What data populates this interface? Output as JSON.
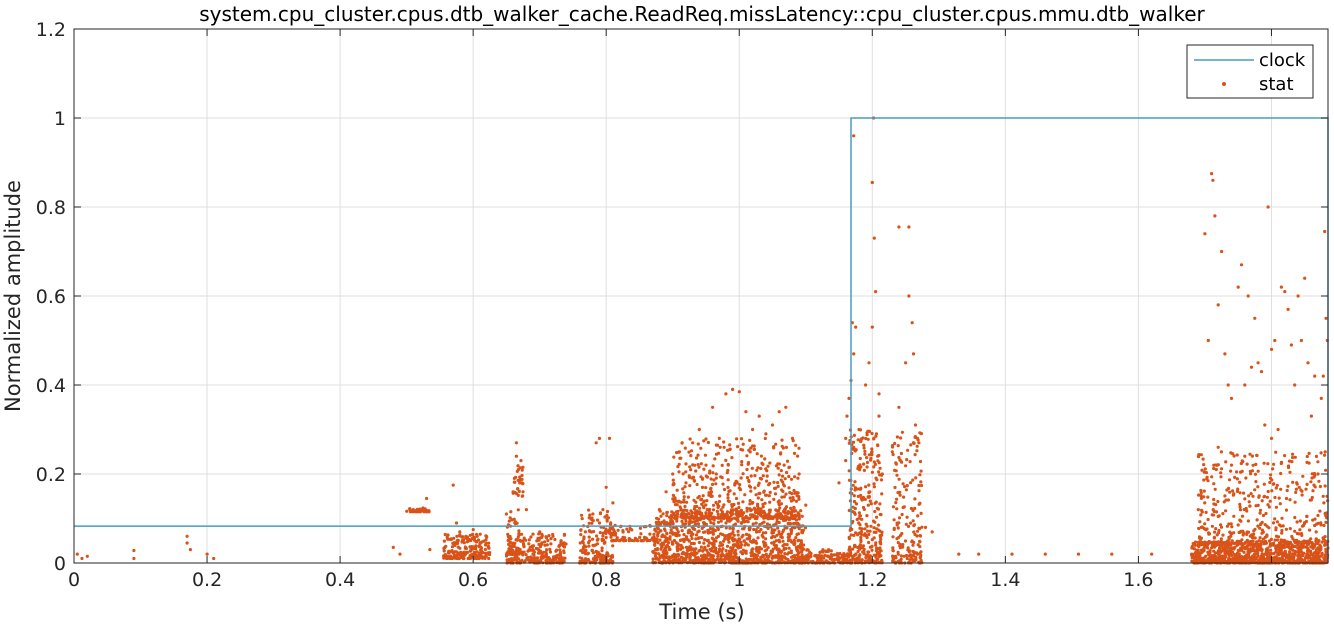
{
  "chart_data": {
    "type": "scatter",
    "title": "system.cpu_cluster.cpus.dtb_walker_cache.ReadReq.missLatency::cpu_cluster.cpus.mmu.dtb_walker",
    "xlabel": "Time (s)",
    "ylabel": "Normalized amplitude",
    "xlim": [
      0,
      1.885
    ],
    "ylim": [
      0,
      1.2
    ],
    "xticks": [
      0,
      0.2,
      0.4,
      0.6,
      0.8,
      1,
      1.2,
      1.4,
      1.6,
      1.8
    ],
    "xtick_labels": [
      "0",
      "0.2",
      "0.4",
      "0.6",
      "0.8",
      "1",
      "1.2",
      "1.4",
      "1.6",
      "1.8"
    ],
    "yticks": [
      0,
      0.2,
      0.4,
      0.6,
      0.8,
      1,
      1.2
    ],
    "ytick_labels": [
      "0",
      "0.2",
      "0.4",
      "0.6",
      "0.8",
      "1",
      "1.2"
    ],
    "grid": true,
    "legend_position": "top-right",
    "colors": {
      "clock": "#4a9cc1",
      "stat": "#d95319"
    },
    "series": [
      {
        "name": "clock",
        "type": "step-line",
        "x": [
          0,
          1.168,
          1.168,
          1.885,
          1.885
        ],
        "y": [
          0.083,
          0.083,
          1.0,
          1.0,
          0
        ]
      },
      {
        "name": "stat",
        "type": "scatter",
        "points": [
          [
            0.005,
            0.02
          ],
          [
            0.012,
            0.01
          ],
          [
            0.02,
            0.015
          ],
          [
            0.09,
            0.028
          ],
          [
            0.09,
            0.01
          ],
          [
            0.17,
            0.06
          ],
          [
            0.17,
            0.045
          ],
          [
            0.175,
            0.03
          ],
          [
            0.2,
            0.02
          ],
          [
            0.21,
            0.01
          ],
          [
            0.48,
            0.035
          ],
          [
            0.49,
            0.02
          ],
          [
            0.505,
            0.12
          ],
          [
            0.51,
            0.12
          ],
          [
            0.515,
            0.118
          ],
          [
            0.52,
            0.12
          ],
          [
            0.525,
            0.12
          ],
          [
            0.53,
            0.145
          ],
          [
            0.53,
            0.118
          ],
          [
            0.535,
            0.03
          ],
          [
            0.57,
            0.175
          ],
          [
            0.575,
            0.09
          ],
          [
            0.58,
            0.07
          ],
          [
            0.6,
            0.075
          ],
          [
            0.62,
            0.06
          ],
          [
            0.65,
            0.11
          ],
          [
            0.655,
            0.02
          ],
          [
            0.66,
            0.16
          ],
          [
            0.662,
            0.19
          ],
          [
            0.665,
            0.24
          ],
          [
            0.665,
            0.27
          ],
          [
            0.668,
            0.21
          ],
          [
            0.67,
            0.18
          ],
          [
            0.672,
            0.23
          ],
          [
            0.675,
            0.16
          ],
          [
            0.68,
            0.12
          ],
          [
            0.69,
            0.065
          ],
          [
            0.7,
            0.07
          ],
          [
            0.72,
            0.06
          ],
          [
            0.73,
            0.04
          ],
          [
            0.78,
            0.11
          ],
          [
            0.785,
            0.27
          ],
          [
            0.79,
            0.28
          ],
          [
            0.795,
            0.12
          ],
          [
            0.8,
            0.17
          ],
          [
            0.805,
            0.28
          ],
          [
            0.81,
            0.135
          ],
          [
            0.79,
            0.09
          ],
          [
            0.775,
            0.05
          ],
          [
            0.81,
            0.05
          ],
          [
            0.88,
            0.12
          ],
          [
            0.89,
            0.16
          ],
          [
            0.9,
            0.2
          ],
          [
            0.91,
            0.25
          ],
          [
            0.92,
            0.18
          ],
          [
            0.93,
            0.27
          ],
          [
            0.94,
            0.3
          ],
          [
            0.95,
            0.22
          ],
          [
            0.96,
            0.35
          ],
          [
            0.97,
            0.28
          ],
          [
            0.98,
            0.38
          ],
          [
            0.99,
            0.39
          ],
          [
            1.0,
            0.385
          ],
          [
            1.01,
            0.34
          ],
          [
            1.02,
            0.3
          ],
          [
            1.03,
            0.33
          ],
          [
            1.04,
            0.29
          ],
          [
            1.05,
            0.31
          ],
          [
            1.06,
            0.34
          ],
          [
            1.07,
            0.35
          ],
          [
            1.08,
            0.28
          ],
          [
            1.09,
            0.2
          ],
          [
            1.1,
            0.13
          ],
          [
            1.15,
            0.18
          ],
          [
            1.16,
            0.23
          ],
          [
            1.16,
            0.28
          ],
          [
            1.162,
            0.33
          ],
          [
            1.165,
            0.37
          ],
          [
            1.168,
            0.41
          ],
          [
            1.17,
            0.54
          ],
          [
            1.172,
            0.47
          ],
          [
            1.175,
            0.53
          ],
          [
            1.172,
            0.96
          ],
          [
            1.18,
            0.3
          ],
          [
            1.19,
            0.4
          ],
          [
            1.195,
            0.45
          ],
          [
            1.2,
            0.53
          ],
          [
            1.2,
            0.855
          ],
          [
            1.202,
            1.0
          ],
          [
            1.203,
            0.73
          ],
          [
            1.205,
            0.61
          ],
          [
            1.21,
            0.33
          ],
          [
            1.21,
            0.38
          ],
          [
            1.215,
            0.2
          ],
          [
            1.24,
            0.755
          ],
          [
            1.255,
            0.755
          ],
          [
            1.255,
            0.6
          ],
          [
            1.26,
            0.54
          ],
          [
            1.262,
            0.47
          ],
          [
            1.265,
            0.31
          ],
          [
            1.268,
            0.28
          ],
          [
            1.27,
            0.27
          ],
          [
            1.25,
            0.45
          ],
          [
            1.24,
            0.35
          ],
          [
            1.23,
            0.25
          ],
          [
            1.28,
            0.08
          ],
          [
            1.29,
            0.07
          ],
          [
            1.33,
            0.02
          ],
          [
            1.36,
            0.02
          ],
          [
            1.41,
            0.02
          ],
          [
            1.46,
            0.02
          ],
          [
            1.51,
            0.02
          ],
          [
            1.56,
            0.02
          ],
          [
            1.62,
            0.02
          ],
          [
            1.68,
            0.02
          ],
          [
            1.69,
            0.12
          ],
          [
            1.7,
            0.74
          ],
          [
            1.705,
            0.5
          ],
          [
            1.71,
            0.875
          ],
          [
            1.712,
            0.86
          ],
          [
            1.715,
            0.78
          ],
          [
            1.72,
            0.58
          ],
          [
            1.725,
            0.7
          ],
          [
            1.73,
            0.47
          ],
          [
            1.735,
            0.4
          ],
          [
            1.74,
            0.37
          ],
          [
            1.75,
            0.62
          ],
          [
            1.755,
            0.67
          ],
          [
            1.76,
            0.4
          ],
          [
            1.765,
            0.6
          ],
          [
            1.77,
            0.44
          ],
          [
            1.775,
            0.55
          ],
          [
            1.78,
            0.45
          ],
          [
            1.785,
            0.43
          ],
          [
            1.79,
            0.31
          ],
          [
            1.795,
            0.8
          ],
          [
            1.8,
            0.48
          ],
          [
            1.805,
            0.5
          ],
          [
            1.81,
            0.3
          ],
          [
            1.815,
            0.62
          ],
          [
            1.82,
            0.61
          ],
          [
            1.825,
            0.57
          ],
          [
            1.83,
            0.49
          ],
          [
            1.835,
            0.4
          ],
          [
            1.84,
            0.6
          ],
          [
            1.845,
            0.5
          ],
          [
            1.85,
            0.64
          ],
          [
            1.855,
            0.45
          ],
          [
            1.86,
            0.33
          ],
          [
            1.865,
            0.42
          ],
          [
            1.87,
            0.2
          ],
          [
            1.875,
            0.37
          ],
          [
            1.878,
            0.42
          ],
          [
            1.88,
            0.745
          ],
          [
            1.882,
            0.55
          ],
          [
            1.884,
            0.5
          ],
          [
            1.72,
            0.26
          ],
          [
            1.74,
            0.22
          ],
          [
            1.76,
            0.24
          ],
          [
            1.8,
            0.28
          ]
        ],
        "clusters": [
          {
            "x": [
              0.555,
              0.625
            ],
            "y": [
              0.01,
              0.065
            ],
            "count": 220
          },
          {
            "x": [
              0.5,
              0.535
            ],
            "y": [
              0.115,
              0.125
            ],
            "count": 30
          },
          {
            "x": [
              0.65,
              0.67
            ],
            "y": [
              0.02,
              0.12
            ],
            "count": 40
          },
          {
            "x": [
              0.66,
              0.675
            ],
            "y": [
              0.15,
              0.22
            ],
            "count": 25
          },
          {
            "x": [
              0.65,
              0.74
            ],
            "y": [
              0.0,
              0.07
            ],
            "count": 260
          },
          {
            "x": [
              0.76,
              0.81
            ],
            "y": [
              0.0,
              0.12
            ],
            "count": 180
          },
          {
            "x": [
              0.8,
              0.88
            ],
            "y": [
              0.05,
              0.085
            ],
            "count": 80
          },
          {
            "x": [
              0.87,
              1.1
            ],
            "y": [
              0.0,
              0.12
            ],
            "count": 1100
          },
          {
            "x": [
              0.9,
              1.09
            ],
            "y": [
              0.1,
              0.28
            ],
            "count": 500
          },
          {
            "x": [
              1.1,
              1.165
            ],
            "y": [
              0.0,
              0.03
            ],
            "count": 120
          },
          {
            "x": [
              1.165,
              1.215
            ],
            "y": [
              0.0,
              0.3
            ],
            "count": 320
          },
          {
            "x": [
              1.23,
              1.275
            ],
            "y": [
              0.0,
              0.3
            ],
            "count": 180
          },
          {
            "x": [
              1.68,
              1.885
            ],
            "y": [
              0.0,
              0.05
            ],
            "count": 900
          },
          {
            "x": [
              1.69,
              1.885
            ],
            "y": [
              0.04,
              0.25
            ],
            "count": 450
          }
        ]
      }
    ]
  }
}
